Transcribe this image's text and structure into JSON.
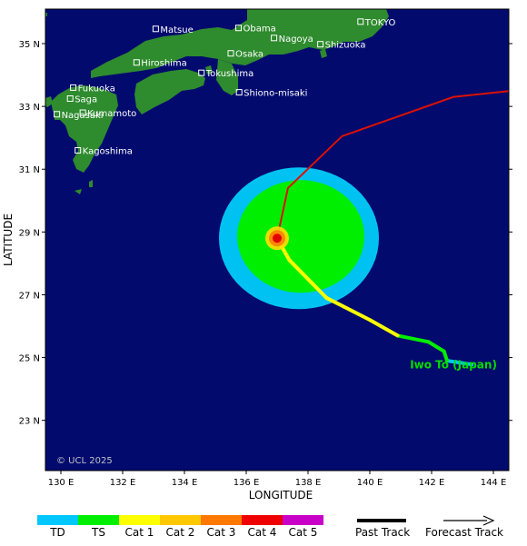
{
  "map": {
    "xlabel": "LONGITUDE",
    "ylabel": "LATITUDE",
    "lon_range": [
      129.5,
      144.5
    ],
    "lat_range": [
      21.4,
      36.1
    ],
    "x_ticks": [
      {
        "value": 130,
        "label": "130 E"
      },
      {
        "value": 132,
        "label": "132 E"
      },
      {
        "value": 134,
        "label": "134 E"
      },
      {
        "value": 136,
        "label": "136 E"
      },
      {
        "value": 138,
        "label": "138 E"
      },
      {
        "value": 140,
        "label": "140 E"
      },
      {
        "value": 142,
        "label": "142 E"
      },
      {
        "value": 144,
        "label": "144 E"
      }
    ],
    "y_ticks": [
      {
        "value": 23,
        "label": "23 N"
      },
      {
        "value": 25,
        "label": "25 N"
      },
      {
        "value": 27,
        "label": "27 N"
      },
      {
        "value": 29,
        "label": "29 N"
      },
      {
        "value": 31,
        "label": "31 N"
      },
      {
        "value": 33,
        "label": "33 N"
      },
      {
        "value": 35,
        "label": "35 N"
      }
    ],
    "colors": {
      "ocean": "#020a6e",
      "land": "#2e8b2e",
      "wind_outer": "#00c2f2",
      "wind_inner": "#00ee00",
      "track_td": "#00c8ff",
      "track_ts": "#00ee00",
      "track_cat1": "#ffff00",
      "track_forecast": "#dd1100",
      "center": "#e00000",
      "place_label": "#ffffff",
      "island_label": "#00dd00"
    },
    "copyright": "© UCL 2025",
    "places": [
      {
        "name": "Matsue",
        "lon": 133.07,
        "lat": 35.47
      },
      {
        "name": "Obama",
        "lon": 135.75,
        "lat": 35.5
      },
      {
        "name": "TOKYO",
        "lon": 139.7,
        "lat": 35.7
      },
      {
        "name": "Nagoya",
        "lon": 136.9,
        "lat": 35.18
      },
      {
        "name": "Shizuoka",
        "lon": 138.4,
        "lat": 34.98
      },
      {
        "name": "Hiroshima",
        "lon": 132.45,
        "lat": 34.4
      },
      {
        "name": "Osaka",
        "lon": 135.5,
        "lat": 34.69
      },
      {
        "name": "Tokushima",
        "lon": 134.55,
        "lat": 34.07
      },
      {
        "name": "Fukuoka",
        "lon": 130.4,
        "lat": 33.6
      },
      {
        "name": "Shiono-misaki",
        "lon": 135.77,
        "lat": 33.45
      },
      {
        "name": "Saga",
        "lon": 130.3,
        "lat": 33.25
      },
      {
        "name": "Nagasaki",
        "lon": 129.87,
        "lat": 32.75
      },
      {
        "name": "Kumamoto",
        "lon": 130.71,
        "lat": 32.8
      },
      {
        "name": "Kagoshima",
        "lon": 130.55,
        "lat": 31.6
      }
    ],
    "storm_center": {
      "lon": 137.0,
      "lat": 28.8
    },
    "annotation": {
      "text": "Iwo To (Japan)",
      "lon": 141.3,
      "lat": 24.65
    },
    "past_track": [
      {
        "lon": 143.3,
        "lat": 24.78,
        "cat": "TD"
      },
      {
        "lon": 142.5,
        "lat": 24.9,
        "cat": "TD"
      },
      {
        "lon": 142.4,
        "lat": 25.2,
        "cat": "TS"
      },
      {
        "lon": 141.9,
        "lat": 25.5,
        "cat": "TS"
      },
      {
        "lon": 140.9,
        "lat": 25.7,
        "cat": "TS"
      },
      {
        "lon": 140.0,
        "lat": 26.2,
        "cat": "Cat 1"
      },
      {
        "lon": 138.6,
        "lat": 26.9,
        "cat": "Cat 1"
      },
      {
        "lon": 137.4,
        "lat": 28.1,
        "cat": "Cat 1"
      },
      {
        "lon": 137.0,
        "lat": 28.8,
        "cat": "Cat 1"
      }
    ],
    "forecast_track": [
      {
        "lon": 137.0,
        "lat": 28.8
      },
      {
        "lon": 137.35,
        "lat": 30.4
      },
      {
        "lon": 139.1,
        "lat": 32.05
      },
      {
        "lon": 142.7,
        "lat": 33.3
      },
      {
        "lon": 144.6,
        "lat": 33.5
      }
    ]
  },
  "legend": {
    "categories": [
      {
        "label": "TD",
        "color": "#00c8ff"
      },
      {
        "label": "TS",
        "color": "#00ee00"
      },
      {
        "label": "Cat 1",
        "color": "#ffff00"
      },
      {
        "label": "Cat 2",
        "color": "#ffc800"
      },
      {
        "label": "Cat 3",
        "color": "#ff7800"
      },
      {
        "label": "Cat 4",
        "color": "#ee0000"
      },
      {
        "label": "Cat 5",
        "color": "#c800c8"
      }
    ],
    "past_track_label": "Past Track",
    "forecast_track_label": "Forecast Track"
  }
}
